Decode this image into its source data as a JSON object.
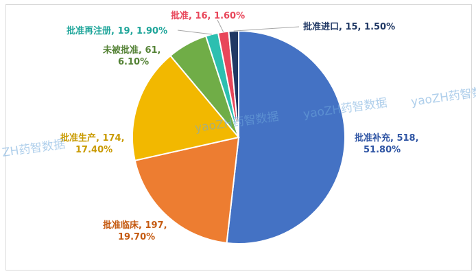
{
  "chart_data": {
    "type": "pie",
    "title": "",
    "slices": [
      {
        "name": "批准补充",
        "value": 518,
        "percent": "51.80%",
        "color": "#4472c4"
      },
      {
        "name": "批准临床",
        "value": 197,
        "percent": "19.70%",
        "color": "#ed7d31"
      },
      {
        "name": "批准生产",
        "value": 174,
        "percent": "17.40%",
        "color": "#f2b800"
      },
      {
        "name": "未被批准",
        "value": 61,
        "percent": "6.10%",
        "color": "#70ad47"
      },
      {
        "name": "批准再注册",
        "value": 19,
        "percent": "1.90%",
        "color": "#2cbfb0"
      },
      {
        "name": "批准",
        "value": 16,
        "percent": "1.60%",
        "color": "#e8465a"
      },
      {
        "name": "批准进口",
        "value": 15,
        "percent": "1.50%",
        "color": "#203864"
      }
    ],
    "labels": {
      "批准补充": {
        "line1": "批准补充, 518,",
        "line2": "51.80%",
        "color": "#2f55a4"
      },
      "批准临床": {
        "line1": "批准临床, 197,",
        "line2": "19.70%",
        "color": "#c55a11"
      },
      "批准生产": {
        "line1": "批准生产, 174,",
        "line2": "17.40%",
        "color": "#c99a00"
      },
      "未被批准": {
        "line1": "未被批准, 61,",
        "line2": "6.10%",
        "color": "#548235"
      },
      "批准再注册": {
        "line1": "批准再注册, 19, 1.90%",
        "line2": "",
        "color": "#1fa59a"
      },
      "批准": {
        "line1": "批准, 16, 1.60%",
        "line2": "",
        "color": "#e8465a"
      },
      "批准进口": {
        "line1": "批准进口, 15, 1.50%",
        "line2": "",
        "color": "#203864"
      }
    },
    "legend": "none"
  },
  "watermarks": [
    "yaoZH药智数据",
    "yaoZH药智数据",
    "yaoZH药智数据",
    "ZH药智数据"
  ]
}
